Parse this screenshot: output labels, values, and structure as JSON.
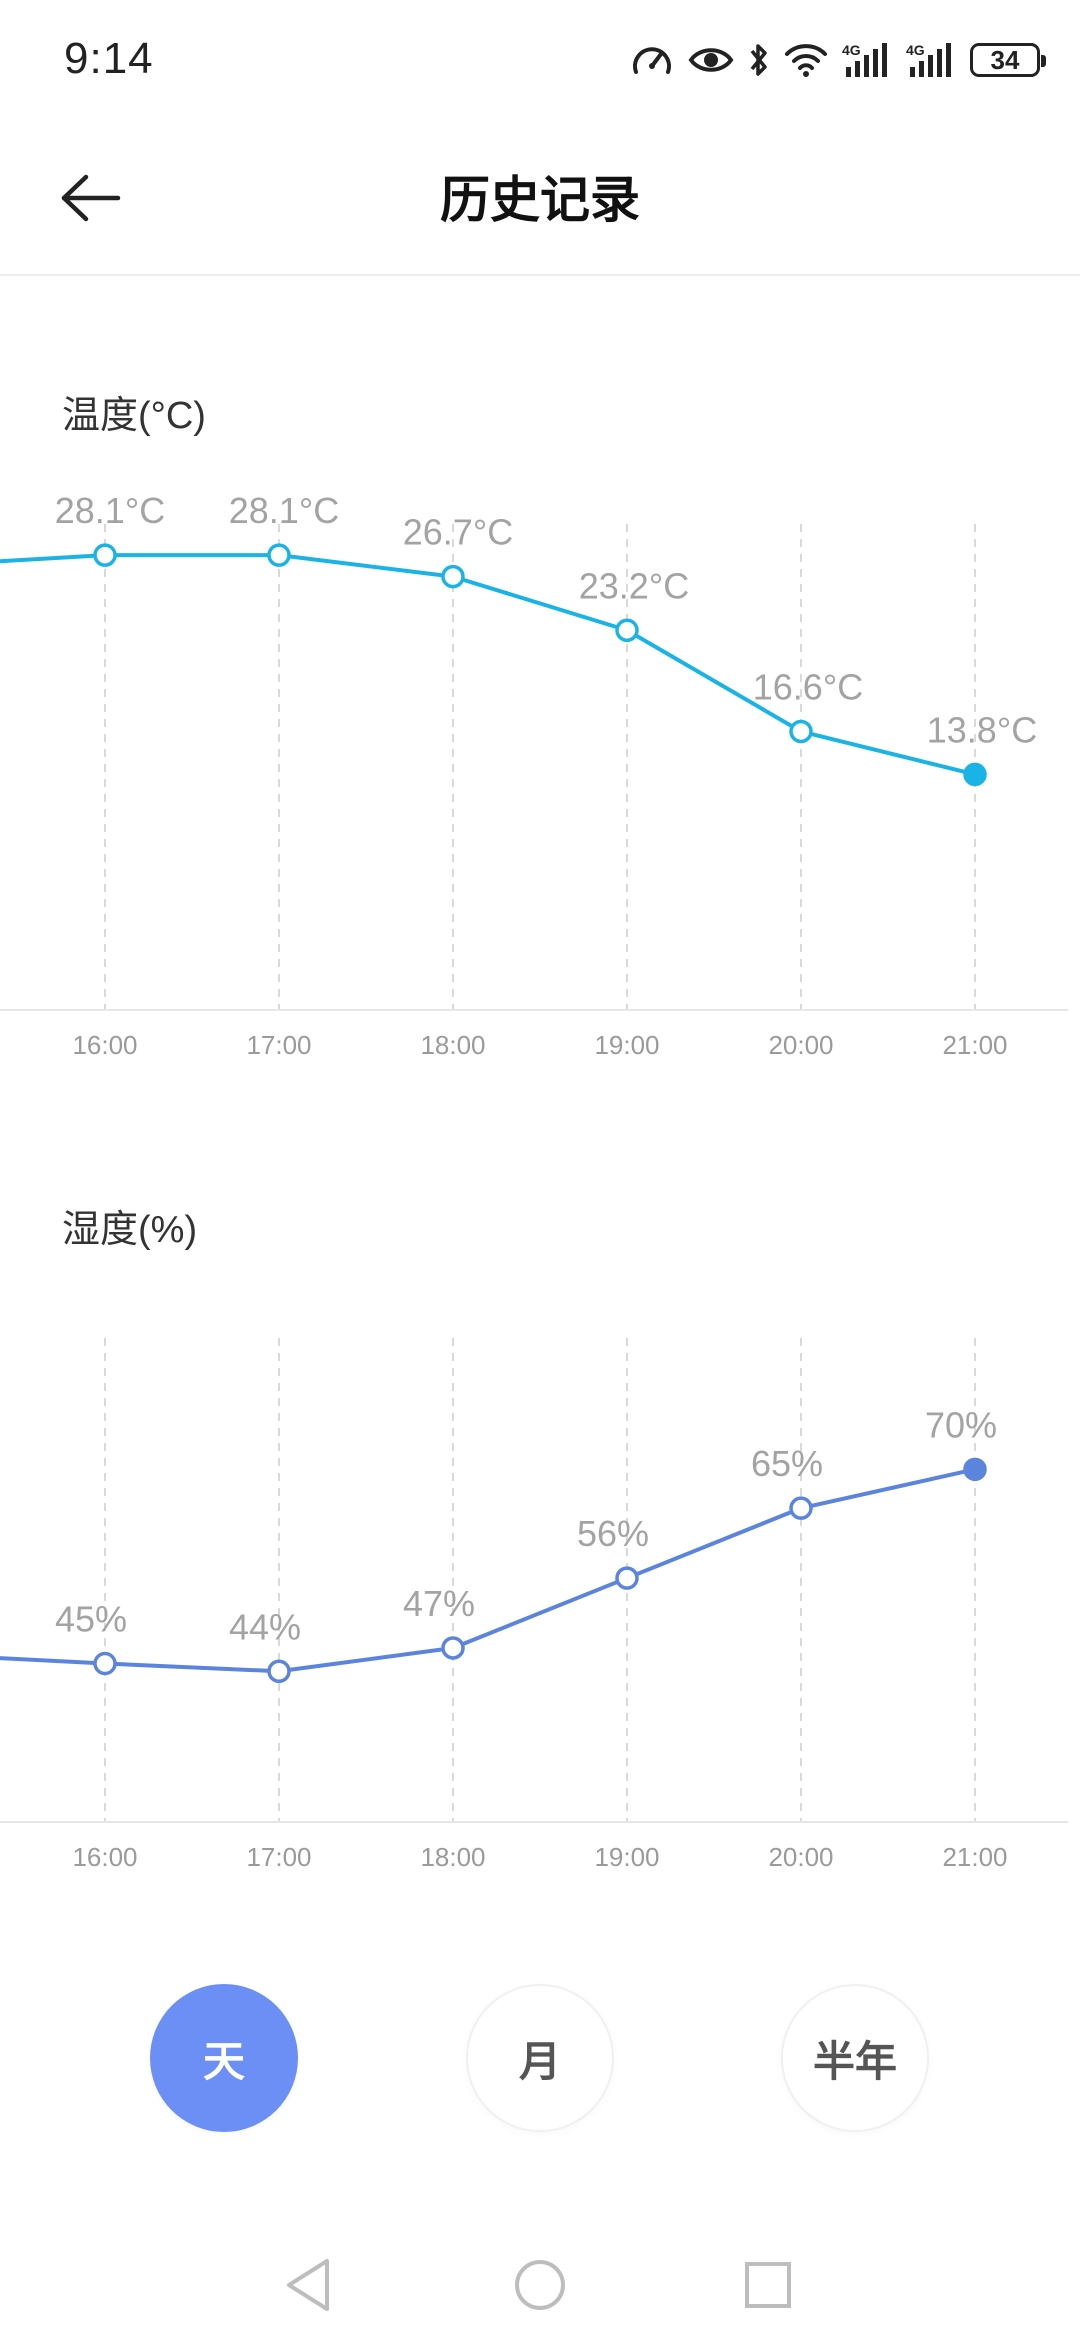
{
  "status_bar": {
    "time": "9:14",
    "battery": "34",
    "icons": [
      "speed-icon",
      "eye-icon",
      "bluetooth-icon",
      "wifi-icon",
      "signal-4g-icon",
      "signal-4g-icon",
      "battery-icon"
    ]
  },
  "header": {
    "title": "历史记录",
    "back_icon": "back-arrow-icon"
  },
  "temperature": {
    "title": "温度(°C)",
    "color": "#1ab3e6"
  },
  "humidity": {
    "title": "湿度(%)",
    "color": "#5b84dd"
  },
  "chart_data": [
    {
      "type": "line",
      "title": "温度(°C)",
      "x": [
        "16:00",
        "17:00",
        "18:00",
        "19:00",
        "20:00",
        "21:00"
      ],
      "series": [
        {
          "values": [
            28.1,
            28.1,
            26.7,
            23.2,
            16.6,
            13.8
          ],
          "labels": [
            "28.1°C",
            "28.1°C",
            "26.7°C",
            "23.2°C",
            "16.6°C",
            "13.8°C"
          ]
        }
      ],
      "ylim": [
        0,
        30
      ],
      "grid": "vertical dashed"
    },
    {
      "type": "line",
      "title": "湿度(%)",
      "x": [
        "16:00",
        "17:00",
        "18:00",
        "19:00",
        "20:00",
        "21:00"
      ],
      "series": [
        {
          "values": [
            45,
            44,
            47,
            56,
            65,
            70
          ],
          "labels": [
            "45%",
            "44%",
            "47%",
            "56%",
            "65%",
            "70%"
          ]
        }
      ],
      "ylim": [
        30,
        90
      ],
      "grid": "vertical dashed"
    }
  ],
  "range_buttons": [
    {
      "label": "天",
      "active": true
    },
    {
      "label": "月",
      "active": false
    },
    {
      "label": "半年",
      "active": false
    }
  ],
  "nav": {
    "back": "nav-back-icon",
    "home": "nav-home-icon",
    "recents": "nav-recents-icon"
  }
}
